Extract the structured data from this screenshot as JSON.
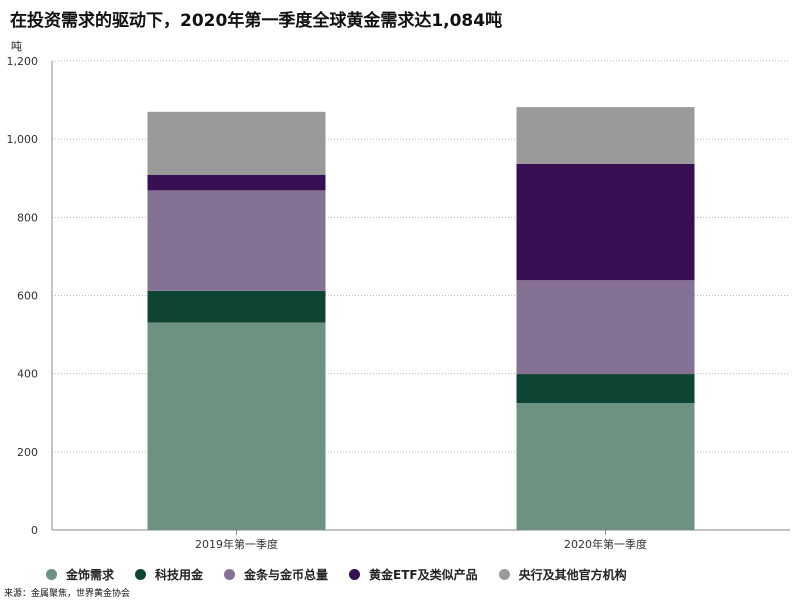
{
  "chart_data": {
    "type": "bar",
    "stacked": true,
    "title": "在投资需求的驱动下，2020年第一季度全球黄金需求达1,084吨",
    "ylabel": "吨",
    "ylim": [
      0,
      1200
    ],
    "yticks": [
      "0",
      "200",
      "400",
      "600",
      "800",
      "1,000",
      "1,200"
    ],
    "ytick_values": [
      0,
      200,
      400,
      600,
      800,
      1000,
      1200
    ],
    "categories": [
      "2019年第一季度",
      "2020年第一季度"
    ],
    "series": [
      {
        "name": "金饰需求",
        "color": "#6e9282",
        "values": [
          531,
          325
        ]
      },
      {
        "name": "科技用金",
        "color": "#0e4433",
        "values": [
          81,
          74
        ]
      },
      {
        "name": "金条与金币总量",
        "color": "#857194",
        "values": [
          257,
          240
        ]
      },
      {
        "name": "黄金ETF及类似产品",
        "color": "#361052",
        "values": [
          40,
          298
        ]
      },
      {
        "name": "央行及其他官方机构",
        "color": "#9a9a9a",
        "values": [
          161,
          145
        ]
      }
    ],
    "grid": "horizontal-dotted",
    "legend": "bottom",
    "source": "来源：金属聚焦，世界黄金协会"
  }
}
